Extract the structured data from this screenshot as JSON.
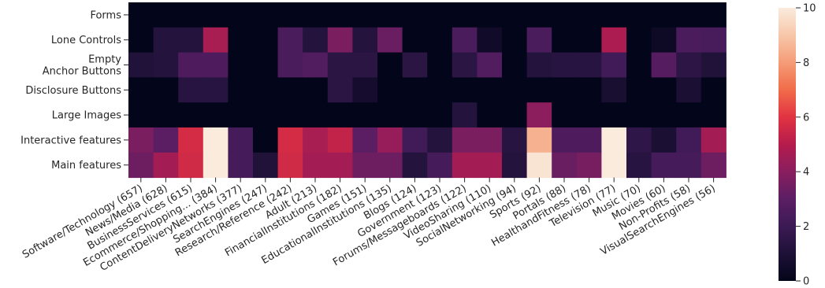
{
  "chart_data": {
    "type": "heatmap",
    "rows": [
      [
        "Forms"
      ],
      [
        "Lone Controls"
      ],
      [
        "Empty",
        "Anchor Buttons"
      ],
      [
        "Disclosure Buttons"
      ],
      [
        "Large Images"
      ],
      [
        "Interactive features"
      ],
      [
        "Main features"
      ]
    ],
    "columns": [
      "Software/Technology (657)",
      "News/Media (628)",
      "BusinessServices (615)",
      "Ecommerce/Shopping... (384)",
      "ContentDeliveryNetworks (377)",
      "SearchEngines (247)",
      "Research/Reference (242)",
      "Adult (213)",
      "FinancialInstitutions (182)",
      "Games (151)",
      "EducationalInstitutions (135)",
      "Blogs (124)",
      "Government (123)",
      "Forums/Messageboards (122)",
      "VideoSharing (110)",
      "SocialNetworking (94)",
      "Sports (92)",
      "Portals (88)",
      "HealthandFitness (78)",
      "Television (77)",
      "Music (70)",
      "Movies (60)",
      "Non-Profits (58)",
      "VisualSearchEngines (56)"
    ],
    "values": [
      [
        0,
        0,
        0,
        0,
        0,
        0,
        0,
        0,
        0,
        0,
        0,
        0,
        0,
        0,
        0,
        0,
        0,
        0,
        0,
        0,
        0,
        0,
        0,
        0
      ],
      [
        0,
        1.2,
        1.2,
        4.7,
        0,
        0,
        2.5,
        1.2,
        3.7,
        1.2,
        3.3,
        0,
        0,
        2.5,
        0.5,
        0,
        2.5,
        0,
        0,
        4.8,
        0,
        0.4,
        2.5,
        2.4
      ],
      [
        1.1,
        1.2,
        2.6,
        2.6,
        0,
        0,
        2.5,
        2.7,
        1.4,
        1.4,
        0,
        1.4,
        0,
        1.4,
        2.7,
        0,
        1.2,
        1.3,
        1.3,
        2.2,
        0,
        2.8,
        1.5,
        1.1
      ],
      [
        0,
        0,
        1.3,
        1.3,
        0,
        0,
        0,
        0,
        1.4,
        0.7,
        0,
        0,
        0,
        0,
        0,
        0,
        0,
        0,
        0,
        0.8,
        0,
        0,
        0.9,
        0
      ],
      [
        0,
        0,
        0,
        0,
        0,
        0,
        0,
        0,
        0,
        0,
        0,
        0,
        0,
        1.2,
        0,
        0,
        4.1,
        0,
        0,
        0,
        0,
        0,
        0,
        0
      ],
      [
        3.7,
        3.0,
        5.7,
        10,
        2.3,
        0,
        5.7,
        4.7,
        5.3,
        3.0,
        4.3,
        2.2,
        1.2,
        3.7,
        3.7,
        1.3,
        8.5,
        2.6,
        2.6,
        10,
        1.6,
        0.9,
        2.2,
        4.6
      ],
      [
        3.4,
        4.6,
        5.6,
        10,
        2.3,
        1.1,
        5.6,
        4.6,
        4.6,
        3.4,
        3.4,
        1.2,
        2.3,
        4.6,
        4.6,
        1.2,
        9.8,
        3.3,
        3.6,
        10,
        1.3,
        2.3,
        2.3,
        3.4
      ]
    ],
    "colorbar": {
      "min": 0,
      "max": 10,
      "ticks": [
        "0",
        "2",
        "4",
        "6",
        "8",
        "10"
      ]
    },
    "colormap": "rocket"
  }
}
